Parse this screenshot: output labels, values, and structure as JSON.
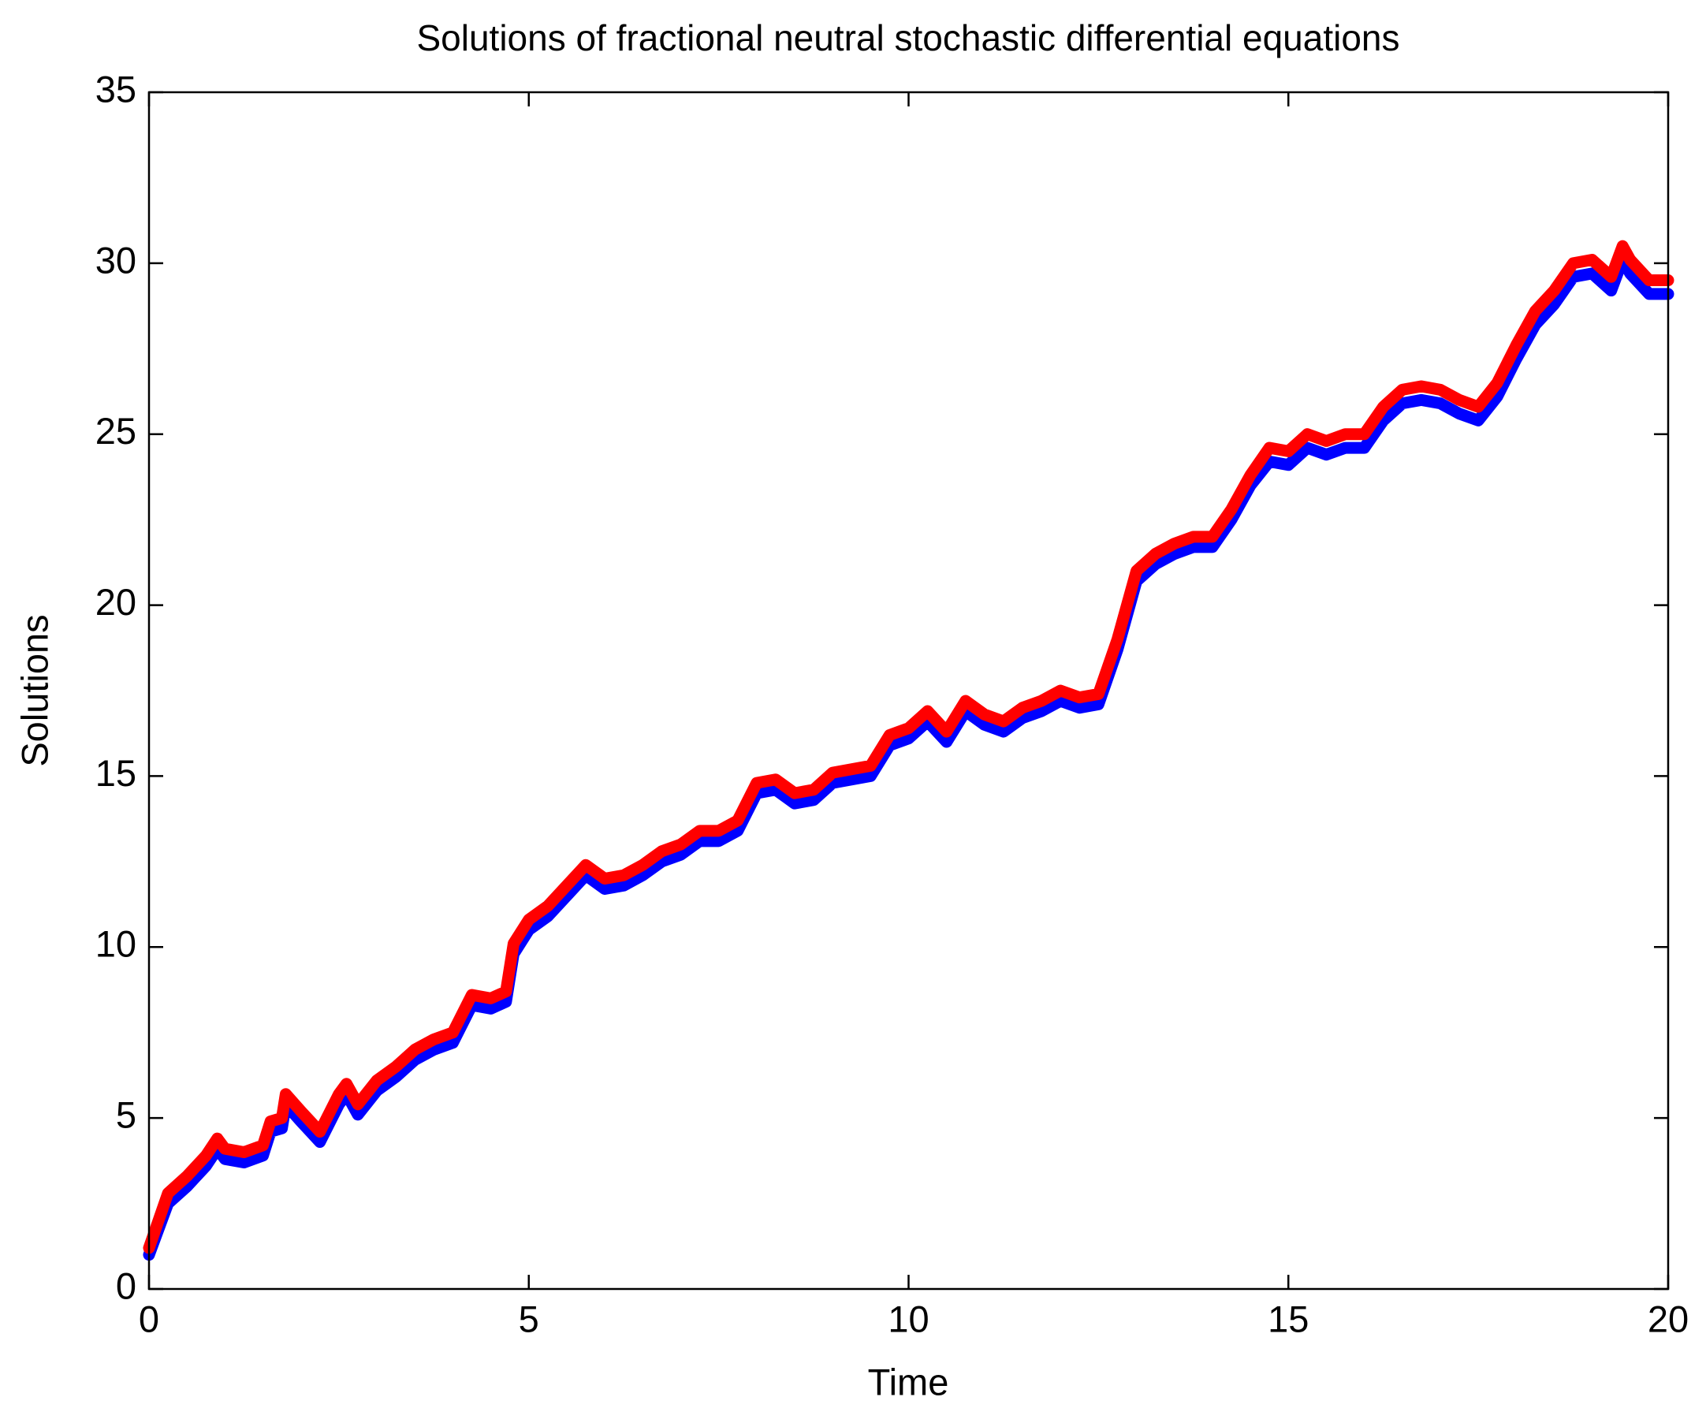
{
  "chart_data": {
    "type": "line",
    "title": "Solutions of fractional neutral stochastic differential equations",
    "xlabel": "Time",
    "ylabel": "Solutions",
    "x": [
      0,
      0.25,
      0.5,
      0.75,
      0.9,
      1.0,
      1.25,
      1.5,
      1.6,
      1.75,
      1.8,
      2.0,
      2.25,
      2.5,
      2.6,
      2.75,
      3.0,
      3.25,
      3.5,
      3.75,
      4.0,
      4.25,
      4.5,
      4.7,
      4.8,
      5.0,
      5.25,
      5.5,
      5.75,
      6.0,
      6.25,
      6.5,
      6.75,
      7.0,
      7.25,
      7.5,
      7.75,
      8.0,
      8.25,
      8.5,
      8.75,
      9.0,
      9.25,
      9.5,
      9.75,
      10.0,
      10.25,
      10.5,
      10.75,
      11.0,
      11.25,
      11.5,
      11.75,
      12.0,
      12.25,
      12.5,
      12.75,
      13.0,
      13.25,
      13.5,
      13.75,
      14.0,
      14.25,
      14.5,
      14.75,
      15.0,
      15.25,
      15.5,
      15.75,
      16.0,
      16.25,
      16.5,
      16.75,
      17.0,
      17.25,
      17.5,
      17.75,
      18.0,
      18.25,
      18.5,
      18.75,
      19.0,
      19.25,
      19.4,
      19.5,
      19.75,
      20.0
    ],
    "series": [
      {
        "color": "#0000ff",
        "values": [
          1.0,
          2.5,
          3.0,
          3.6,
          4.1,
          3.8,
          3.7,
          3.9,
          4.6,
          4.7,
          5.4,
          4.9,
          4.3,
          5.4,
          5.7,
          5.1,
          5.8,
          6.2,
          6.7,
          7.0,
          7.2,
          8.3,
          8.2,
          8.4,
          9.8,
          10.5,
          10.9,
          11.5,
          12.1,
          11.7,
          11.8,
          12.1,
          12.5,
          12.7,
          13.1,
          13.1,
          13.4,
          14.5,
          14.6,
          14.2,
          14.3,
          14.8,
          14.9,
          15.0,
          15.9,
          16.1,
          16.6,
          16.0,
          16.9,
          16.5,
          16.3,
          16.7,
          16.9,
          17.2,
          17.0,
          17.1,
          18.7,
          20.7,
          21.2,
          21.5,
          21.7,
          21.7,
          22.5,
          23.5,
          24.2,
          24.1,
          24.6,
          24.4,
          24.6,
          24.6,
          25.4,
          25.9,
          26.0,
          25.9,
          25.6,
          25.4,
          26.1,
          27.2,
          28.2,
          28.8,
          29.6,
          29.7,
          29.2,
          30.1,
          29.7,
          29.1,
          29.1
        ]
      },
      {
        "color": "#ff0000",
        "values": [
          1.2,
          2.8,
          3.3,
          3.9,
          4.4,
          4.1,
          4.0,
          4.2,
          4.9,
          5.0,
          5.7,
          5.2,
          4.6,
          5.7,
          6.0,
          5.4,
          6.1,
          6.5,
          7.0,
          7.3,
          7.5,
          8.6,
          8.5,
          8.7,
          10.1,
          10.8,
          11.2,
          11.8,
          12.4,
          12.0,
          12.1,
          12.4,
          12.8,
          13.0,
          13.4,
          13.4,
          13.7,
          14.8,
          14.9,
          14.5,
          14.6,
          15.1,
          15.2,
          15.3,
          16.2,
          16.4,
          16.9,
          16.3,
          17.2,
          16.8,
          16.6,
          17.0,
          17.2,
          17.5,
          17.3,
          17.4,
          19.0,
          21.0,
          21.5,
          21.8,
          22.0,
          22.0,
          22.8,
          23.8,
          24.6,
          24.5,
          25.0,
          24.8,
          25.0,
          25.0,
          25.8,
          26.3,
          26.4,
          26.3,
          26.0,
          25.8,
          26.5,
          27.6,
          28.6,
          29.2,
          30.0,
          30.1,
          29.6,
          30.5,
          30.1,
          29.5,
          29.5
        ]
      }
    ],
    "xlim": [
      0,
      20
    ],
    "xticks": [
      0,
      5,
      10,
      15,
      20
    ],
    "ylim": [
      0,
      35
    ],
    "yticks": [
      0,
      5,
      10,
      15,
      20,
      25,
      30,
      35
    ]
  }
}
